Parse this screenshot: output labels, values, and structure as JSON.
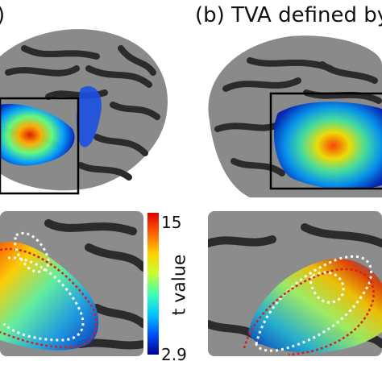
{
  "figure": {
    "panel_a_label": ")",
    "panel_b_label": "(b) TVA defined by",
    "colorbar": {
      "max_label": "15",
      "min_label": "2.9",
      "axis_label": "t value",
      "colors": [
        "#00008f",
        "#0050ff",
        "#00c8ff",
        "#40ffb0",
        "#c8ff30",
        "#ffd000",
        "#ff6000",
        "#e00000"
      ]
    },
    "brain_colors": {
      "gyri": "#9c9c9c",
      "sulci": "#2e2e2e",
      "roi_box": "#000000",
      "dotted_white": "#ffffff",
      "dotted_red": "#d42020"
    }
  }
}
